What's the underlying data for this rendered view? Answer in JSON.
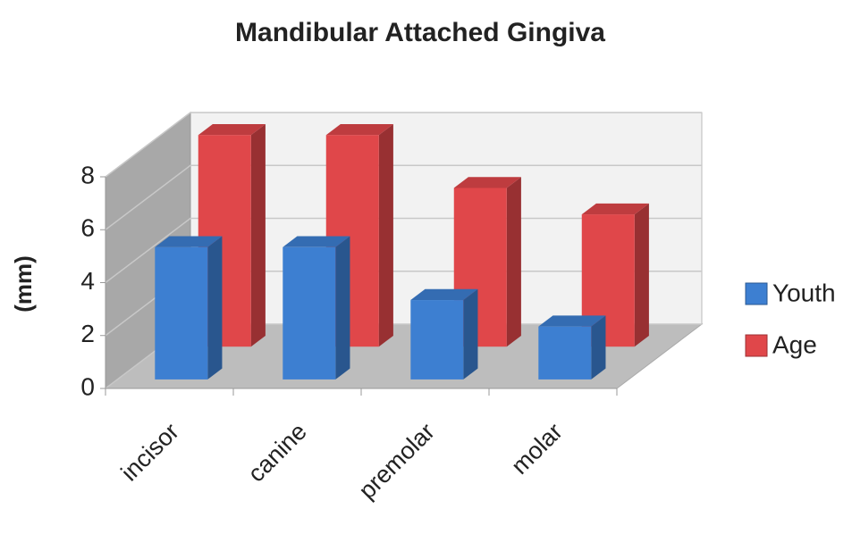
{
  "chart_data": {
    "type": "bar3d",
    "title": "Mandibular Attached Gingiva",
    "y_label": "(mm)",
    "categories": [
      "incisor",
      "canine",
      "premolar",
      "molar"
    ],
    "series": [
      {
        "name": "Youth",
        "color": "#3d7fd1",
        "values": [
          5,
          5,
          3,
          2
        ]
      },
      {
        "name": "Age",
        "color": "#e0474a",
        "values": [
          8,
          8,
          6,
          5
        ]
      }
    ],
    "ylim": [
      0,
      8
    ],
    "yticks": [
      0,
      2,
      4,
      6,
      8
    ],
    "grid": true,
    "legend": "right"
  }
}
